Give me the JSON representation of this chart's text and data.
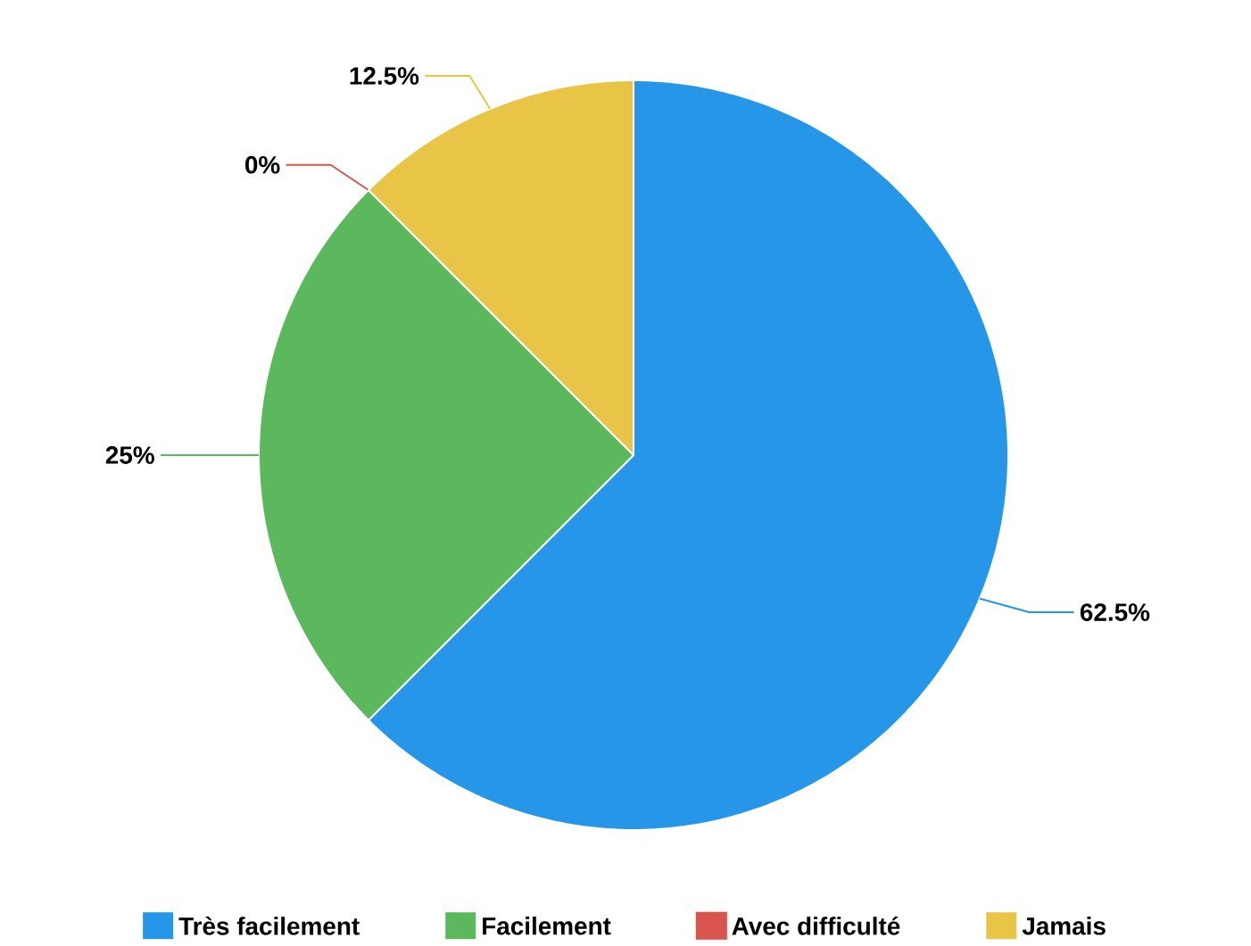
{
  "chart_data": {
    "type": "pie",
    "categories": [
      "Très facilement",
      "Facilement",
      "Avec difficulté",
      "Jamais"
    ],
    "values": [
      62.5,
      25,
      0,
      12.5
    ],
    "colors": [
      "#2596e8",
      "#5cb85c",
      "#d9534f",
      "#e8c547"
    ],
    "value_labels": [
      "62.5%",
      "25%",
      "0%",
      "12.5%"
    ],
    "legend": "bottom"
  }
}
